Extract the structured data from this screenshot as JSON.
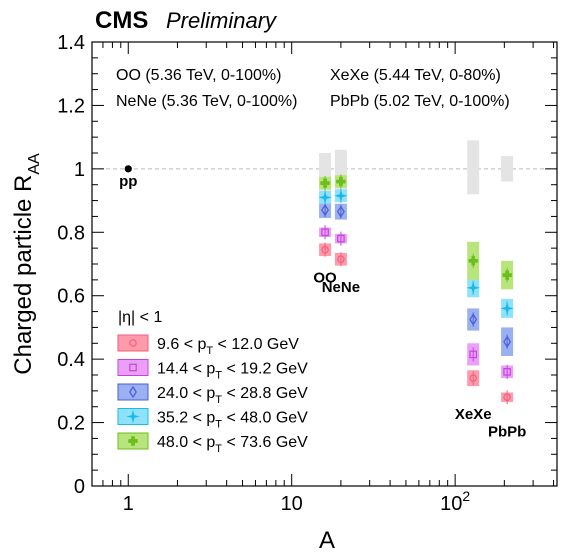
{
  "header": {
    "experiment": "CMS",
    "status": "Preliminary"
  },
  "chart_data": {
    "type": "scatter",
    "title": "",
    "xlabel": "A",
    "ylabel_main": "Charged particle R",
    "ylabel_sub": "AA",
    "xscale": "log",
    "xlim": [
      0.6,
      420
    ],
    "ylim": [
      0,
      1.4
    ],
    "x_ticks": [
      {
        "value": 1,
        "label": "1"
      },
      {
        "value": 10,
        "label": "10"
      },
      {
        "value": 100,
        "label": "10",
        "sup": "2"
      }
    ],
    "y_ticks": [
      {
        "value": 0,
        "label": "0"
      },
      {
        "value": 0.2,
        "label": "0.2"
      },
      {
        "value": 0.4,
        "label": "0.4"
      },
      {
        "value": 0.6,
        "label": "0.6"
      },
      {
        "value": 0.8,
        "label": "0.8"
      },
      {
        "value": 1.0,
        "label": "1"
      },
      {
        "value": 1.2,
        "label": "1.2"
      },
      {
        "value": 1.4,
        "label": "1.4"
      }
    ],
    "reference_line": 1.0,
    "systems_text": [
      {
        "text": "OO (5.36 TeV, 0-100%)"
      },
      {
        "text": "XeXe (5.44 TeV, 0-80%)"
      },
      {
        "text": "NeNe (5.36 TeV, 0-100%)"
      },
      {
        "text": "PbPb (5.02 TeV, 0-100%)"
      }
    ],
    "eta_label": "|η| < 1",
    "system_labels": [
      {
        "text": "pp",
        "x": 1,
        "y": 0.965
      },
      {
        "text": "OO",
        "x": 16,
        "y": 0.66
      },
      {
        "text": "NeNe",
        "x": 20,
        "y": 0.63
      },
      {
        "text": "XeXe",
        "x": 129,
        "y": 0.23
      },
      {
        "text": "PbPb",
        "x": 208,
        "y": 0.175
      }
    ],
    "pp_point": {
      "x": 1,
      "y": 1.0
    },
    "norm_uncertainty": [
      {
        "x": 16,
        "low": 0.91,
        "high": 1.05
      },
      {
        "x": 20,
        "low": 0.91,
        "high": 1.06
      },
      {
        "x": 129,
        "low": 0.92,
        "high": 1.09
      },
      {
        "x": 208,
        "low": 0.96,
        "high": 1.04
      }
    ],
    "series": [
      {
        "name": "9.6 < pT < 12.0 GeV",
        "legend": {
          "prefix": "9.6 < p",
          "sub": "T",
          "suffix": " < 12.0 GeV"
        },
        "color": "#f0607e",
        "fill": "#ff9aaa",
        "marker": "circle",
        "points": [
          {
            "x": 16,
            "y": 0.745,
            "syst_low": 0.725,
            "syst_high": 0.765
          },
          {
            "x": 20,
            "y": 0.715,
            "syst_low": 0.695,
            "syst_high": 0.735
          },
          {
            "x": 129,
            "y": 0.34,
            "syst_low": 0.315,
            "syst_high": 0.365
          },
          {
            "x": 208,
            "y": 0.28,
            "syst_low": 0.265,
            "syst_high": 0.295
          }
        ]
      },
      {
        "name": "14.4 < pT < 19.2 GeV",
        "legend": {
          "prefix": "14.4 < p",
          "sub": "T",
          "suffix": " < 19.2 GeV"
        },
        "color": "#c642e0",
        "fill": "#eaa0f6",
        "marker": "square",
        "points": [
          {
            "x": 16,
            "y": 0.8,
            "syst_low": 0.785,
            "syst_high": 0.815
          },
          {
            "x": 20,
            "y": 0.78,
            "syst_low": 0.765,
            "syst_high": 0.795
          },
          {
            "x": 129,
            "y": 0.415,
            "syst_low": 0.38,
            "syst_high": 0.45
          },
          {
            "x": 208,
            "y": 0.36,
            "syst_low": 0.34,
            "syst_high": 0.38
          }
        ]
      },
      {
        "name": "24.0 < pT < 28.8 GeV",
        "legend": {
          "prefix": "24.0 < p",
          "sub": "T",
          "suffix": " < 28.8 GeV"
        },
        "color": "#4a5cd6",
        "fill": "#9ab0f0",
        "marker": "diamond",
        "points": [
          {
            "x": 16,
            "y": 0.87,
            "syst_low": 0.845,
            "syst_high": 0.895
          },
          {
            "x": 20,
            "y": 0.865,
            "syst_low": 0.84,
            "syst_high": 0.89
          },
          {
            "x": 129,
            "y": 0.525,
            "syst_low": 0.49,
            "syst_high": 0.56
          },
          {
            "x": 208,
            "y": 0.455,
            "syst_low": 0.41,
            "syst_high": 0.5
          }
        ]
      },
      {
        "name": "35.2 < pT < 48.0 GeV",
        "legend": {
          "prefix": "35.2 < p",
          "sub": "T",
          "suffix": " < 48.0 GeV"
        },
        "color": "#1eb8e8",
        "fill": "#8ee2fb",
        "marker": "star",
        "points": [
          {
            "x": 16,
            "y": 0.91,
            "syst_low": 0.89,
            "syst_high": 0.93
          },
          {
            "x": 20,
            "y": 0.915,
            "syst_low": 0.895,
            "syst_high": 0.935
          },
          {
            "x": 129,
            "y": 0.625,
            "syst_low": 0.595,
            "syst_high": 0.655
          },
          {
            "x": 208,
            "y": 0.56,
            "syst_low": 0.53,
            "syst_high": 0.59
          }
        ]
      },
      {
        "name": "48.0 < pT < 73.6 GeV",
        "legend": {
          "prefix": "48.0 < p",
          "sub": "T",
          "suffix": " < 73.6 GeV"
        },
        "color": "#6cbf1a",
        "fill": "#b8e47e",
        "marker": "cross",
        "points": [
          {
            "x": 16,
            "y": 0.955,
            "syst_low": 0.935,
            "syst_high": 0.975
          },
          {
            "x": 20,
            "y": 0.96,
            "syst_low": 0.94,
            "syst_high": 0.98
          },
          {
            "x": 129,
            "y": 0.71,
            "syst_low": 0.65,
            "syst_high": 0.77
          },
          {
            "x": 208,
            "y": 0.665,
            "syst_low": 0.62,
            "syst_high": 0.71
          }
        ]
      }
    ]
  }
}
